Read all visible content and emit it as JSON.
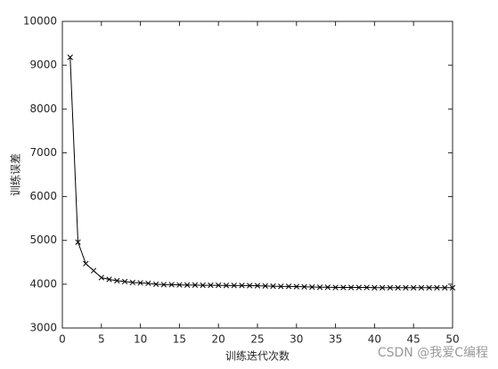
{
  "chart_data": {
    "type": "line",
    "xlabel": "训练迭代次数",
    "ylabel": "训练误差",
    "annotation": "CSDN @我爱C编程",
    "x": [
      1,
      2,
      3,
      4,
      5,
      6,
      7,
      8,
      9,
      10,
      11,
      12,
      13,
      14,
      15,
      16,
      17,
      18,
      19,
      20,
      21,
      22,
      23,
      24,
      25,
      26,
      27,
      28,
      29,
      30,
      31,
      32,
      33,
      34,
      35,
      36,
      37,
      38,
      39,
      40,
      41,
      42,
      43,
      44,
      45,
      46,
      47,
      48,
      49,
      50
    ],
    "values": [
      9180,
      4960,
      4470,
      4310,
      4150,
      4110,
      4080,
      4060,
      4040,
      4030,
      4020,
      4000,
      3990,
      3990,
      3985,
      3980,
      3980,
      3975,
      3975,
      3975,
      3970,
      3970,
      3970,
      3968,
      3965,
      3960,
      3955,
      3950,
      3950,
      3945,
      3940,
      3935,
      3930,
      3930,
      3925,
      3925,
      3925,
      3925,
      3925,
      3920,
      3920,
      3920,
      3920,
      3920,
      3920,
      3920,
      3920,
      3920,
      3920,
      3920
    ],
    "color": "#000000",
    "marker": "x",
    "xlim": [
      0,
      50
    ],
    "xticks": [
      0,
      5,
      10,
      15,
      20,
      25,
      30,
      35,
      40,
      45,
      50
    ],
    "ylim": [
      3000,
      10000
    ],
    "yticks": [
      3000,
      4000,
      5000,
      6000,
      7000,
      8000,
      9000,
      10000
    ],
    "grid": false
  }
}
